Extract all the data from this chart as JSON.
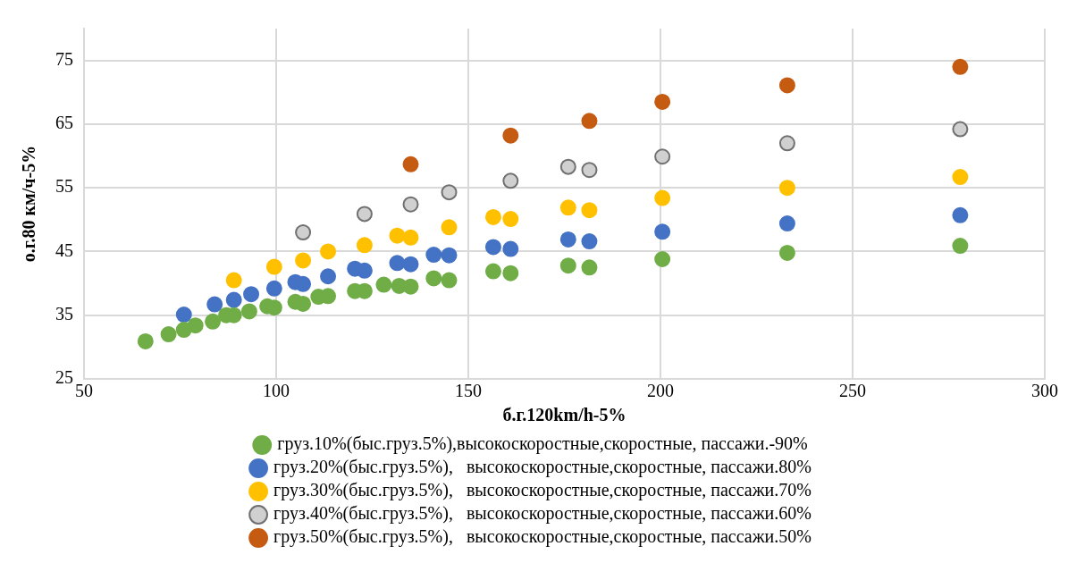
{
  "chart_data": {
    "type": "scatter",
    "xlabel": "б.г.120km/h-5%",
    "ylabel": "о.г.80 км/ч-5%",
    "xlim": [
      50,
      300
    ],
    "xticks": [
      50,
      100,
      150,
      200,
      250,
      300
    ],
    "ylim": [
      25,
      80
    ],
    "yticks": [
      25,
      35,
      45,
      55,
      65,
      75
    ],
    "grid": true,
    "legend": "bottom",
    "marker": "circle",
    "series": [
      {
        "name": "груз.10%(быс.груз.5%),высокоскоростные,скоростные, пассажи.-90%",
        "color": "#70ad47",
        "x": [
          66,
          72,
          76,
          79,
          83.5,
          87,
          89,
          93,
          97.7,
          99.5,
          105,
          107,
          111,
          113.5,
          120.5,
          123,
          128,
          132,
          135,
          141,
          145,
          156.5,
          161,
          176,
          181.5,
          200.5,
          233,
          278
        ],
        "values": [
          30.9,
          32,
          32.7,
          33.4,
          34,
          35,
          35,
          35.6,
          36.4,
          36.2,
          37.1,
          36.8,
          37.9,
          38,
          38.8,
          38.8,
          39.8,
          39.6,
          39.5,
          40.8,
          40.5,
          41.9,
          41.6,
          42.8,
          42.5,
          43.8,
          44.8,
          45.9
        ]
      },
      {
        "name": "груз.20%(быс.груз.5%),   высокоскоростные,скоростные, пассажи.80%",
        "color": "#4472c4",
        "x": [
          76,
          84,
          89,
          93.5,
          99.5,
          105,
          107,
          113.5,
          120.5,
          123,
          131.5,
          135,
          141,
          145,
          156.5,
          161,
          176,
          181.5,
          200.5,
          233,
          278
        ],
        "values": [
          35.1,
          36.7,
          37.4,
          38.3,
          39.2,
          40.2,
          39.9,
          41.1,
          42.3,
          42,
          43.2,
          43,
          44.5,
          44.4,
          45.7,
          45.4,
          46.9,
          46.6,
          48.1,
          49.4,
          50.7
        ]
      },
      {
        "name": "груз.30%(быс.груз.5%),   высокоскоростные,скоростные, пассажи.70%",
        "color": "#ffc000",
        "x": [
          89,
          99.5,
          107,
          113.5,
          123,
          131.5,
          135,
          145,
          156.5,
          161,
          176,
          181.5,
          200.5,
          233,
          278
        ],
        "values": [
          40.5,
          42.6,
          43.6,
          45,
          46,
          47.5,
          47.2,
          48.8,
          50.4,
          50.1,
          51.9,
          51.5,
          53.4,
          55,
          56.7
        ]
      },
      {
        "name": "груз.40%(быс.груз.5%),   высокоскоростные,скоростные, пассажи.60%",
        "color": "#d0d0d0",
        "x": [
          107,
          123,
          135,
          145,
          161,
          176,
          181.5,
          200.5,
          233,
          278
        ],
        "values": [
          48,
          50.9,
          52.4,
          54.3,
          56.1,
          58.3,
          57.8,
          59.9,
          62,
          64.2
        ]
      },
      {
        "name": "груз.50%(быс.груз.5%),   высокоскоростные,скоростные, пассажи.50%",
        "color": "#c55a11",
        "x": [
          135,
          161,
          181.5,
          200.5,
          233,
          278
        ],
        "values": [
          58.7,
          63.2,
          65.5,
          68.5,
          71.1,
          74
        ]
      }
    ]
  }
}
